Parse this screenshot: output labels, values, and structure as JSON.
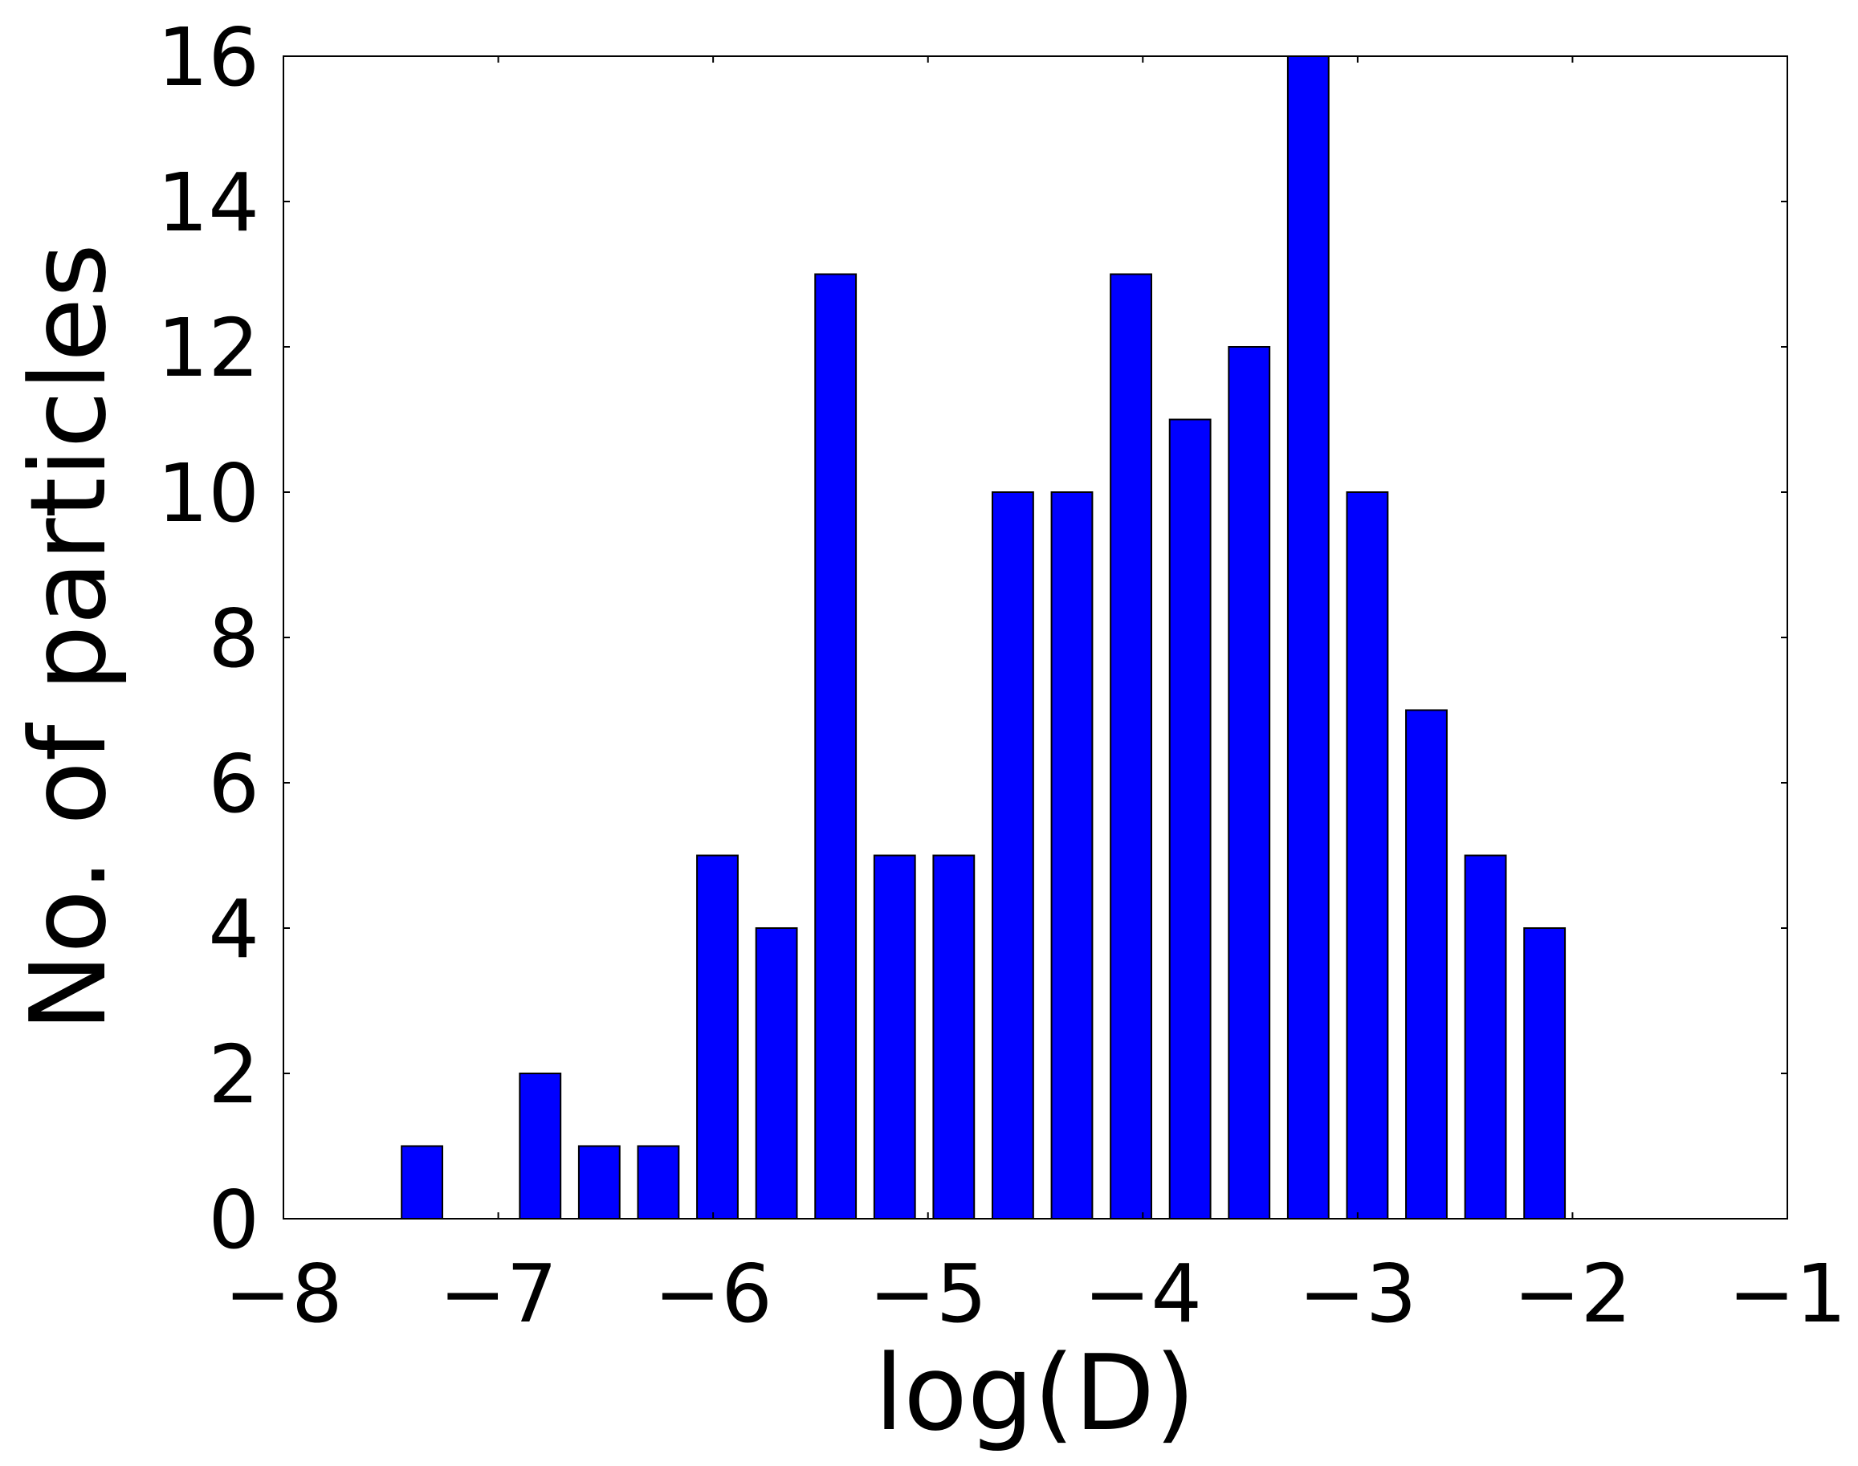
{
  "chart_data": {
    "type": "bar",
    "title": "",
    "xlabel": "log(D)",
    "ylabel": "No. of particles",
    "xlim": [
      -8,
      -1
    ],
    "ylim": [
      0,
      16
    ],
    "bin_width": 0.275,
    "bins_left": [
      -7.45,
      -7.175,
      -6.9,
      -6.625,
      -6.35,
      -6.075,
      -5.8,
      -5.525,
      -5.25,
      -4.975,
      -4.7,
      -4.425,
      -4.15,
      -3.875,
      -3.6,
      -3.325,
      -3.05,
      -2.775,
      -2.5,
      -2.225,
      -1.95
    ],
    "bar_width": 0.19,
    "values": [
      1,
      0,
      2,
      1,
      1,
      5,
      4,
      13,
      5,
      5,
      10,
      10,
      13,
      11,
      12,
      16,
      10,
      7,
      5,
      4
    ],
    "xticks": [
      -8,
      -7,
      -6,
      -5,
      -4,
      -3,
      -2,
      -1
    ],
    "xtick_labels": [
      "−8",
      "−7",
      "−6",
      "−5",
      "−4",
      "−3",
      "−2",
      "−1"
    ],
    "yticks": [
      0,
      2,
      4,
      6,
      8,
      10,
      12,
      14,
      16
    ],
    "ytick_labels": [
      "0",
      "2",
      "4",
      "6",
      "8",
      "10",
      "12",
      "14",
      "16"
    ],
    "grid": false,
    "legend": "none",
    "colors": {
      "bar": "#0000ff",
      "edge": "#000000"
    }
  }
}
